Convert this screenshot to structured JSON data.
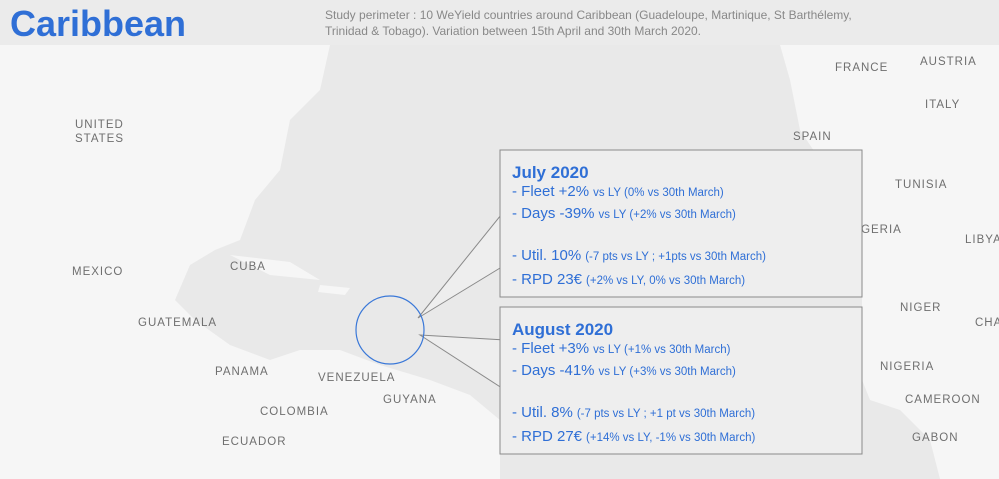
{
  "header": {
    "title": "Caribbean",
    "subtitle": [
      "Study perimeter : 10 WeYield countries around Caribbean (Guadeloupe, Martinique, St Barthélemy,",
      "Trinidad & Tobago). Variation between 15th April and 30th March 2020."
    ]
  },
  "map_labels": [
    "UNITED",
    "STATES",
    "MEXICO",
    "CUBA",
    "GUATEMALA",
    "PANAMA",
    "VENEZUELA",
    "GUYANA",
    "COLOMBIA",
    "ECUADOR",
    "FRANCE",
    "AUSTRIA",
    "ITALY",
    "SPAIN",
    "TUNISIA",
    "ALGERIA",
    "LIBYA",
    "NIGER",
    "CHAD",
    "NIGERIA",
    "CAMEROON",
    "GABON"
  ],
  "callouts": [
    {
      "title": "July 2020",
      "items": [
        {
          "main": "- Fleet +2%",
          "detail": "vs LY (0% vs 30th March)"
        },
        {
          "main": "- Days -39%",
          "detail": "vs LY (+2% vs 30th March)"
        },
        {
          "main": "- Util. 10%",
          "detail": "(-7 pts vs LY ; +1pts vs 30th March)"
        },
        {
          "main": "- RPD 23€",
          "detail": "(+2% vs LY, 0% vs 30th March)"
        }
      ]
    },
    {
      "title": "August 2020",
      "items": [
        {
          "main": "- Fleet +3%",
          "detail": "vs LY (+1% vs 30th March)"
        },
        {
          "main": "- Days -41%",
          "detail": "vs LY (+3% vs 30th March)"
        },
        {
          "main": "- Util. 8%",
          "detail": "(-7 pts vs LY ; +1 pt vs 30th March)"
        },
        {
          "main": "- RPD 27€",
          "detail": "(+14% vs LY, -1% vs 30th March)"
        }
      ]
    }
  ]
}
